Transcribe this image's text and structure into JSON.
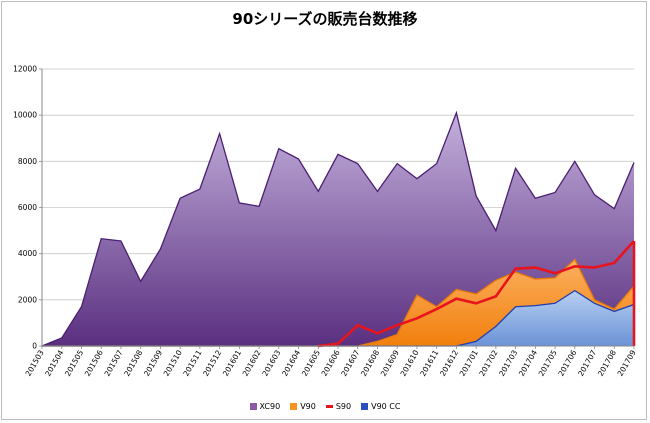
{
  "chart_data": {
    "type": "area",
    "title": "90シリーズの販売台数推移",
    "xlabel": "",
    "ylabel": "",
    "ylim": [
      0,
      12000
    ],
    "yticks": [
      0,
      2000,
      4000,
      6000,
      8000,
      10000,
      12000
    ],
    "grid": true,
    "legend_position": "bottom",
    "categories": [
      "201503",
      "201504",
      "201505",
      "201506",
      "201507",
      "201508",
      "201509",
      "201510",
      "201511",
      "201512",
      "201601",
      "201602",
      "201603",
      "201604",
      "201605",
      "201606",
      "201607",
      "201608",
      "201609",
      "201610",
      "201611",
      "201612",
      "201701",
      "201702",
      "201703",
      "201704",
      "201705",
      "201706",
      "201707",
      "201708",
      "201709"
    ],
    "series": [
      {
        "name": "XC90",
        "kind": "area",
        "color": "#8a5aa8",
        "values": [
          0,
          350,
          1700,
          4650,
          4550,
          2800,
          4200,
          6400,
          6800,
          9200,
          6200,
          6050,
          8550,
          8100,
          6700,
          8300,
          7900,
          6700,
          7900,
          7250,
          7900,
          10100,
          6500,
          5000,
          7700,
          6400,
          6650,
          8000,
          6550,
          5950,
          7950
        ]
      },
      {
        "name": "V90",
        "kind": "area",
        "color": "#f7931e",
        "values": [
          0,
          0,
          0,
          0,
          0,
          0,
          0,
          0,
          0,
          0,
          0,
          0,
          0,
          0,
          0,
          0,
          0,
          200,
          500,
          2200,
          1700,
          2450,
          2250,
          2850,
          3200,
          2900,
          2950,
          3750,
          2000,
          1600,
          2600
        ]
      },
      {
        "name": "S90",
        "kind": "line",
        "color": "#e8141d",
        "values": [
          0,
          0,
          0,
          0,
          0,
          0,
          0,
          0,
          0,
          0,
          0,
          0,
          0,
          0,
          0,
          100,
          900,
          550,
          900,
          1200,
          1600,
          2050,
          1850,
          2150,
          3350,
          3400,
          3150,
          3450,
          3400,
          3600,
          4550
        ]
      },
      {
        "name": "V90 CC",
        "kind": "area",
        "color": "#7fa6e0",
        "values": [
          0,
          0,
          0,
          0,
          0,
          0,
          0,
          0,
          0,
          0,
          0,
          0,
          0,
          0,
          0,
          0,
          0,
          0,
          0,
          0,
          0,
          0,
          200,
          850,
          1700,
          1750,
          1850,
          2400,
          1850,
          1500,
          1800
        ]
      }
    ]
  }
}
